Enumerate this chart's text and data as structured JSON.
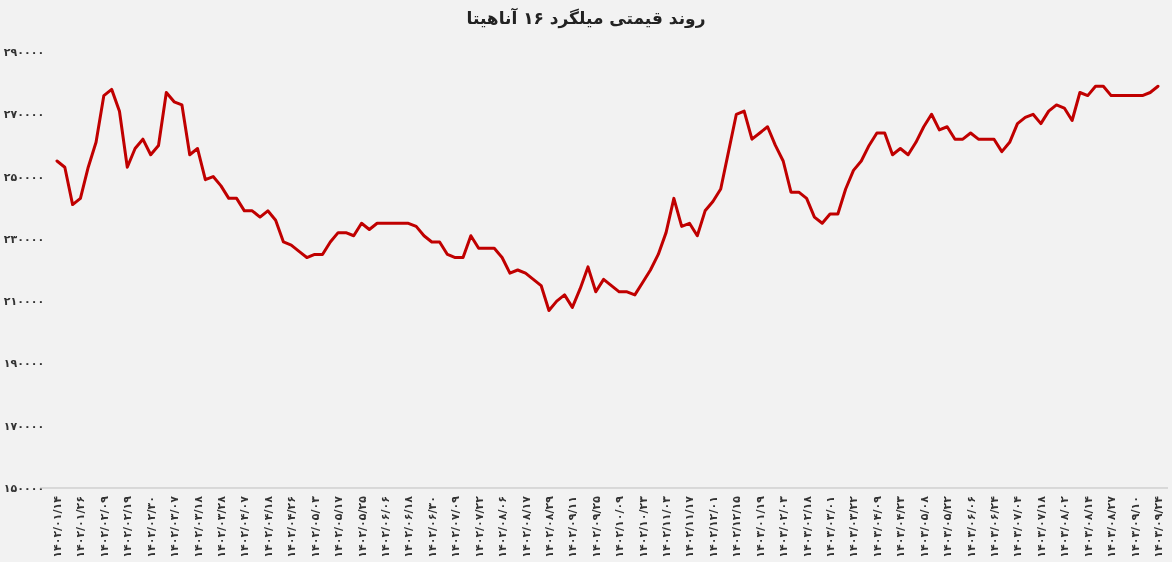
{
  "chart_data": {
    "type": "line",
    "title": "روند قیمتی میلگرد ۱۶ آناهیتا",
    "color": "#c00000",
    "categories": [
      "۱۴۰۲/۰۱/۱۴",
      null,
      null,
      "۱۴۰۲/۰۱/۲۶",
      null,
      null,
      "۱۴۰۲/۰۲/۰۹",
      null,
      null,
      "۱۴۰۲/۰۲/۱۹",
      null,
      null,
      "۱۴۰۲/۰۲/۳۰",
      null,
      null,
      "۱۴۰۲/۰۳/۰۷",
      null,
      null,
      "۱۴۰۲/۰۳/۱۸",
      null,
      null,
      "۱۴۰۲/۰۳/۲۸",
      null,
      null,
      "۱۴۰۲/۰۴/۰۷",
      null,
      null,
      "۱۴۰۲/۰۴/۱۸",
      null,
      null,
      "۱۴۰۲/۰۴/۲۶",
      null,
      null,
      "۱۴۰۲/۰۵/۰۳",
      null,
      null,
      "۱۴۰۲/۰۵/۱۷",
      null,
      null,
      "۱۴۰۲/۰۵/۲۵",
      null,
      null,
      "۱۴۰۲/۰۶/۰۶",
      null,
      null,
      "۱۴۰۲/۰۶/۱۸",
      null,
      null,
      "۱۴۰۲/۰۶/۳۰",
      null,
      null,
      "۱۴۰۲/۰۷/۰۹",
      null,
      null,
      "۱۴۰۲/۰۷/۲۲",
      null,
      null,
      "۱۴۰۲/۰۸/۰۶",
      null,
      null,
      "۱۴۰۲/۰۸/۱۷",
      null,
      null,
      "۱۴۰۲/۰۸/۲۹",
      null,
      null,
      "۱۴۰۲/۰۹/۱۱",
      null,
      null,
      "۱۴۰۲/۰۹/۲۵",
      null,
      null,
      "۱۴۰۲/۱۰/۰۹",
      null,
      null,
      "۱۴۰۲/۱۰/۲۳",
      null,
      null,
      "۱۴۰۲/۱۱/۰۳",
      null,
      null,
      "۱۴۰۲/۱۱/۱۷",
      null,
      null,
      "۱۴۰۲/۱۲/۰۱",
      null,
      null,
      "۱۴۰۲/۱۲/۱۵",
      null,
      null,
      "۱۴۰۳/۰۱/۱۹",
      null,
      null,
      "۱۴۰۳/۰۲/۰۳",
      null,
      null,
      "۱۴۰۳/۰۲/۱۸",
      null,
      null,
      "۱۴۰۳/۰۳/۰۱",
      null,
      null,
      "۱۴۰۳/۰۳/۲۲",
      null,
      null,
      "۱۴۰۳/۰۴/۰۹",
      null,
      null,
      "۱۴۰۳/۰۴/۲۳",
      null,
      null,
      "۱۴۰۳/۰۵/۰۸",
      null,
      null,
      "۱۴۰۳/۰۵/۲۲",
      null,
      null,
      "۱۴۰۳/۰۶/۰۶",
      null,
      null,
      "۱۴۰۳/۰۶/۲۴",
      null,
      null,
      "۱۴۰۳/۰۷/۰۴",
      null,
      null,
      "۱۴۰۳/۰۷/۱۸",
      null,
      null,
      "۱۴۰۳/۰۸/۰۲",
      null,
      null,
      "۱۴۰۳/۰۸/۱۴",
      null,
      null,
      "۱۴۰۳/۰۸/۲۷",
      null,
      null,
      "۱۴۰۳/۰۹/۱۰",
      null,
      null,
      "۱۴۰۳/۰۹/۲۴"
    ],
    "values": [
      255000,
      253000,
      241000,
      243000,
      253000,
      261000,
      276000,
      278000,
      271000,
      253000,
      259000,
      262000,
      257000,
      260000,
      277000,
      274000,
      273000,
      257000,
      259000,
      249000,
      250000,
      247000,
      243000,
      243000,
      239000,
      239000,
      237000,
      239000,
      236000,
      229000,
      228000,
      226000,
      224000,
      225000,
      225000,
      229000,
      232000,
      232000,
      231000,
      235000,
      233000,
      235000,
      235000,
      235000,
      235000,
      235000,
      234000,
      231000,
      229000,
      229000,
      225000,
      224000,
      224000,
      231000,
      227000,
      227000,
      227000,
      224000,
      219000,
      220000,
      219000,
      217000,
      215000,
      207000,
      210000,
      212000,
      208000,
      214000,
      221000,
      213000,
      217000,
      215000,
      213000,
      213000,
      212000,
      216000,
      220000,
      225000,
      232000,
      243000,
      234000,
      235000,
      231000,
      239000,
      242000,
      246000,
      258000,
      270000,
      271000,
      262000,
      264000,
      266000,
      260000,
      255000,
      245000,
      245000,
      243000,
      237000,
      235000,
      238000,
      238000,
      246000,
      252000,
      255000,
      260000,
      264000,
      264000,
      257000,
      259000,
      257000,
      261000,
      266000,
      270000,
      265000,
      266000,
      262000,
      262000,
      264000,
      262000,
      262000,
      262000,
      258000,
      261000,
      267000,
      269000,
      270000,
      267000,
      271000,
      273000,
      272000,
      268000,
      277000,
      276000,
      279000,
      279000,
      276000,
      276000,
      276000,
      276000,
      276000,
      277000,
      279000
    ],
    "ylim": [
      150000,
      290000
    ],
    "yticks": [
      {
        "value": 150000,
        "label": "۱۵۰۰۰۰"
      },
      {
        "value": 170000,
        "label": "۱۷۰۰۰۰"
      },
      {
        "value": 190000,
        "label": "۱۹۰۰۰۰"
      },
      {
        "value": 210000,
        "label": "۲۱۰۰۰۰"
      },
      {
        "value": 230000,
        "label": "۲۳۰۰۰۰"
      },
      {
        "value": 250000,
        "label": "۲۵۰۰۰۰"
      },
      {
        "value": 270000,
        "label": "۲۷۰۰۰۰"
      },
      {
        "value": 290000,
        "label": "۲۹۰۰۰۰"
      }
    ]
  }
}
